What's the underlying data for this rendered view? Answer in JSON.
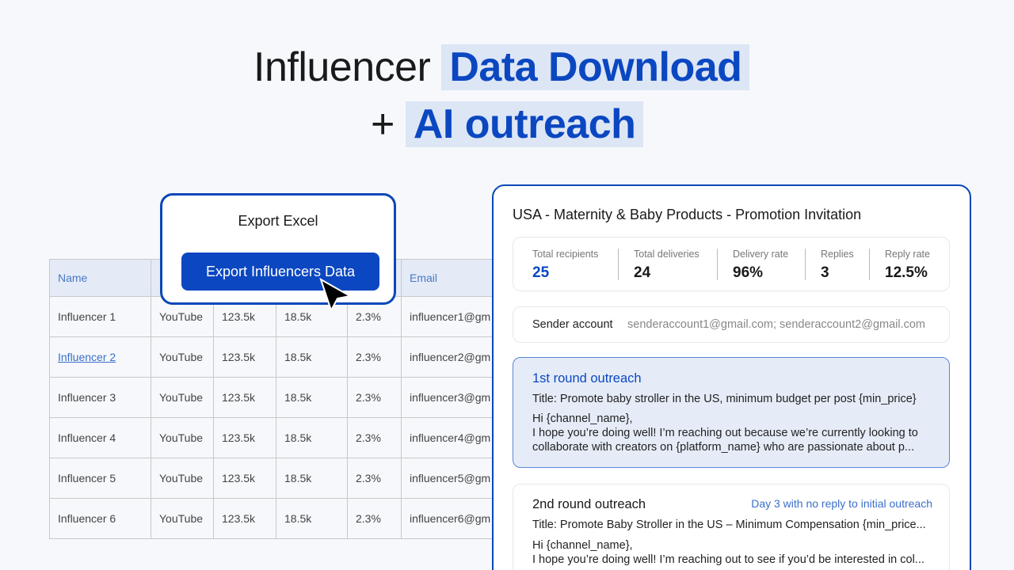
{
  "header": {
    "title_plain": "Influencer",
    "title_highlight": "Data Download",
    "subtitle_plain": "+",
    "subtitle_highlight": "AI outreach"
  },
  "table": {
    "header": {
      "name": "Name",
      "email": "Email"
    },
    "rows": [
      [
        "Influencer 1",
        "YouTube",
        "123.5k",
        "18.5k",
        "2.3%",
        "influencer1@gm"
      ],
      [
        "Influencer 2",
        "YouTube",
        "123.5k",
        "18.5k",
        "2.3%",
        "influencer2@gm"
      ],
      [
        "Influencer 3",
        "YouTube",
        "123.5k",
        "18.5k",
        "2.3%",
        "influencer3@gm"
      ],
      [
        "Influencer 4",
        "YouTube",
        "123.5k",
        "18.5k",
        "2.3%",
        "influencer4@gm"
      ],
      [
        "Influencer 5",
        "YouTube",
        "123.5k",
        "18.5k",
        "2.3%",
        "influencer5@gm"
      ],
      [
        "Influencer 6",
        "YouTube",
        "123.5k",
        "18.5k",
        "2.3%",
        "influencer6@gm"
      ]
    ]
  },
  "export_popup": {
    "title": "Export Excel",
    "button": "Export Influencers Data"
  },
  "campaign": {
    "title": "USA - Maternity & Baby Products - Promotion Invitation",
    "stats": [
      {
        "label": "Total recipients",
        "value": "25"
      },
      {
        "label": "Total deliveries",
        "value": "24"
      },
      {
        "label": "Delivery rate",
        "value": "96%"
      },
      {
        "label": "Replies",
        "value": "3"
      },
      {
        "label": "Reply rate",
        "value": "12.5%"
      }
    ],
    "sender": {
      "label": "Sender account",
      "value": "senderaccount1@gmail.com; senderaccount2@gmail.com"
    },
    "rounds": [
      {
        "name": "1st round outreach",
        "subject": "Title: Promote baby stroller in the US, minimum budget per post {min_price}",
        "body": [
          "Hi {channel_name},",
          "I hope you’re doing well! I’m reaching out because we’re currently looking to",
          "collaborate with creators on {platform_name} who are passionate about p..."
        ]
      },
      {
        "name": "2nd round outreach",
        "condition": "Day 3 with no reply to initial outreach",
        "subject": "Title: Promote Baby Stroller in the US – Minimum Compensation {min_price...",
        "body": [
          "Hi {channel_name},",
          "I hope you’re doing well! I’m reaching out to see if you’d be interested in col..."
        ]
      }
    ]
  }
}
